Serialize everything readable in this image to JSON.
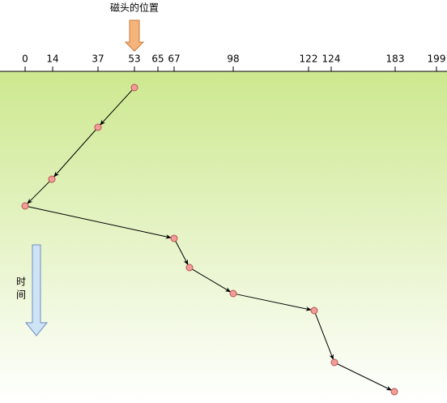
{
  "header": {
    "title": "磁头的位置"
  },
  "axis": {
    "ticks": [
      "0",
      "14",
      "37",
      "53",
      "65",
      "67",
      "98",
      "122",
      "124",
      "183",
      "199"
    ]
  },
  "time_label": [
    "时",
    "间"
  ]
}
